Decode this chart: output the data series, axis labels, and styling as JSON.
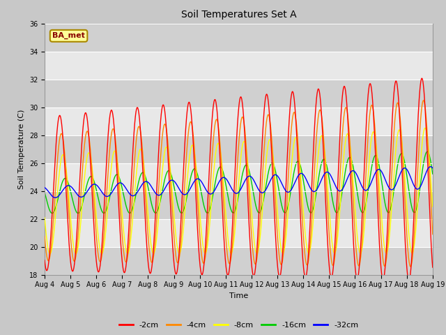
{
  "title": "Soil Temperatures Set A",
  "xlabel": "Time",
  "ylabel": "Soil Temperature (C)",
  "ylim": [
    18,
    36
  ],
  "yticks": [
    18,
    20,
    22,
    24,
    26,
    28,
    30,
    32,
    34,
    36
  ],
  "n_days": 15,
  "x_tick_labels": [
    "Aug 4",
    "Aug 5",
    "Aug 6",
    "Aug 7",
    "Aug 8",
    "Aug 9",
    "Aug 10",
    "Aug 11",
    "Aug 12",
    "Aug 13",
    "Aug 14",
    "Aug 15",
    "Aug 16",
    "Aug 17",
    "Aug 18",
    "Aug 19"
  ],
  "legend_labels": [
    "-2cm",
    "-4cm",
    "-8cm",
    "-16cm",
    "-32cm"
  ],
  "series_colors": [
    "#ff0000",
    "#ff8800",
    "#ffff00",
    "#00cc00",
    "#0000ff"
  ],
  "annotation_text": "BA_met",
  "annotation_bg": "#ffff99",
  "annotation_border": "#aa8800",
  "fig_bg": "#c8c8c8",
  "plot_bg": "#d8d8d8",
  "band_light": "#e8e8e8",
  "band_dark": "#d0d0d0",
  "title_fontsize": 10,
  "axis_label_fontsize": 8,
  "tick_fontsize": 7,
  "legend_fontsize": 8
}
